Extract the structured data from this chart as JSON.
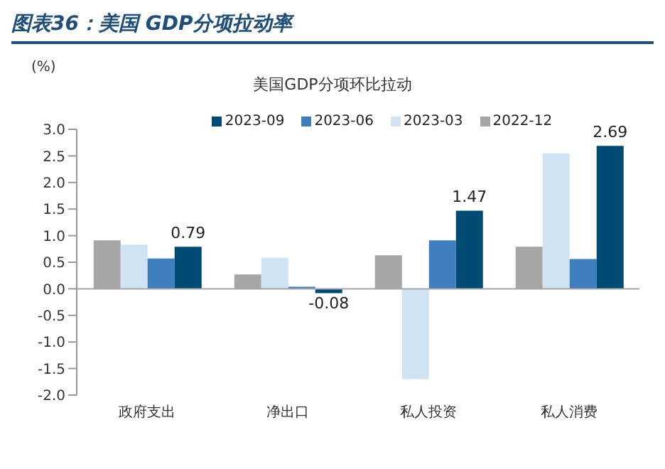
{
  "chart_data": {
    "type": "bar",
    "title": "图表36：美国 GDP分项拉动率",
    "subtitle": "美国GDP分项环比拉动",
    "ylabel": "(%)",
    "categories": [
      "政府支出",
      "净出口",
      "私人投资",
      "私人消费"
    ],
    "series": [
      {
        "name": "2022-12",
        "color": "#a6a6a6",
        "values": [
          0.91,
          0.27,
          0.63,
          0.79
        ]
      },
      {
        "name": "2023-03",
        "color": "#d0e3f3",
        "values": [
          0.83,
          0.58,
          -1.7,
          2.55
        ]
      },
      {
        "name": "2023-06",
        "color": "#3f7fbf",
        "values": [
          0.57,
          0.04,
          0.91,
          0.56
        ]
      },
      {
        "name": "2023-09",
        "color": "#004b74",
        "values": [
          0.79,
          -0.08,
          1.47,
          2.69
        ],
        "value_labels": [
          "0.79",
          "-0.08",
          "1.47",
          "2.69"
        ]
      }
    ],
    "ylim": [
      -2.0,
      3.0
    ],
    "yticks": [
      {
        "value": -2,
        "label": "-2.0"
      },
      {
        "value": -1.5,
        "label": "-1.5"
      },
      {
        "value": -1,
        "label": "-1.0"
      },
      {
        "value": -0.5,
        "label": "-0.5"
      },
      {
        "value": 0,
        "label": "0.0"
      },
      {
        "value": 0.5,
        "label": "0.5"
      },
      {
        "value": 1,
        "label": "1.0"
      },
      {
        "value": 1.5,
        "label": "1.5"
      },
      {
        "value": 2,
        "label": "2.0"
      },
      {
        "value": 2.5,
        "label": "2.5"
      },
      {
        "value": 3,
        "label": "3.0"
      }
    ],
    "ref_lines": [
      {
        "axis": "y",
        "value": 0,
        "color": "#a6a6a6"
      }
    ],
    "legend": "top"
  }
}
